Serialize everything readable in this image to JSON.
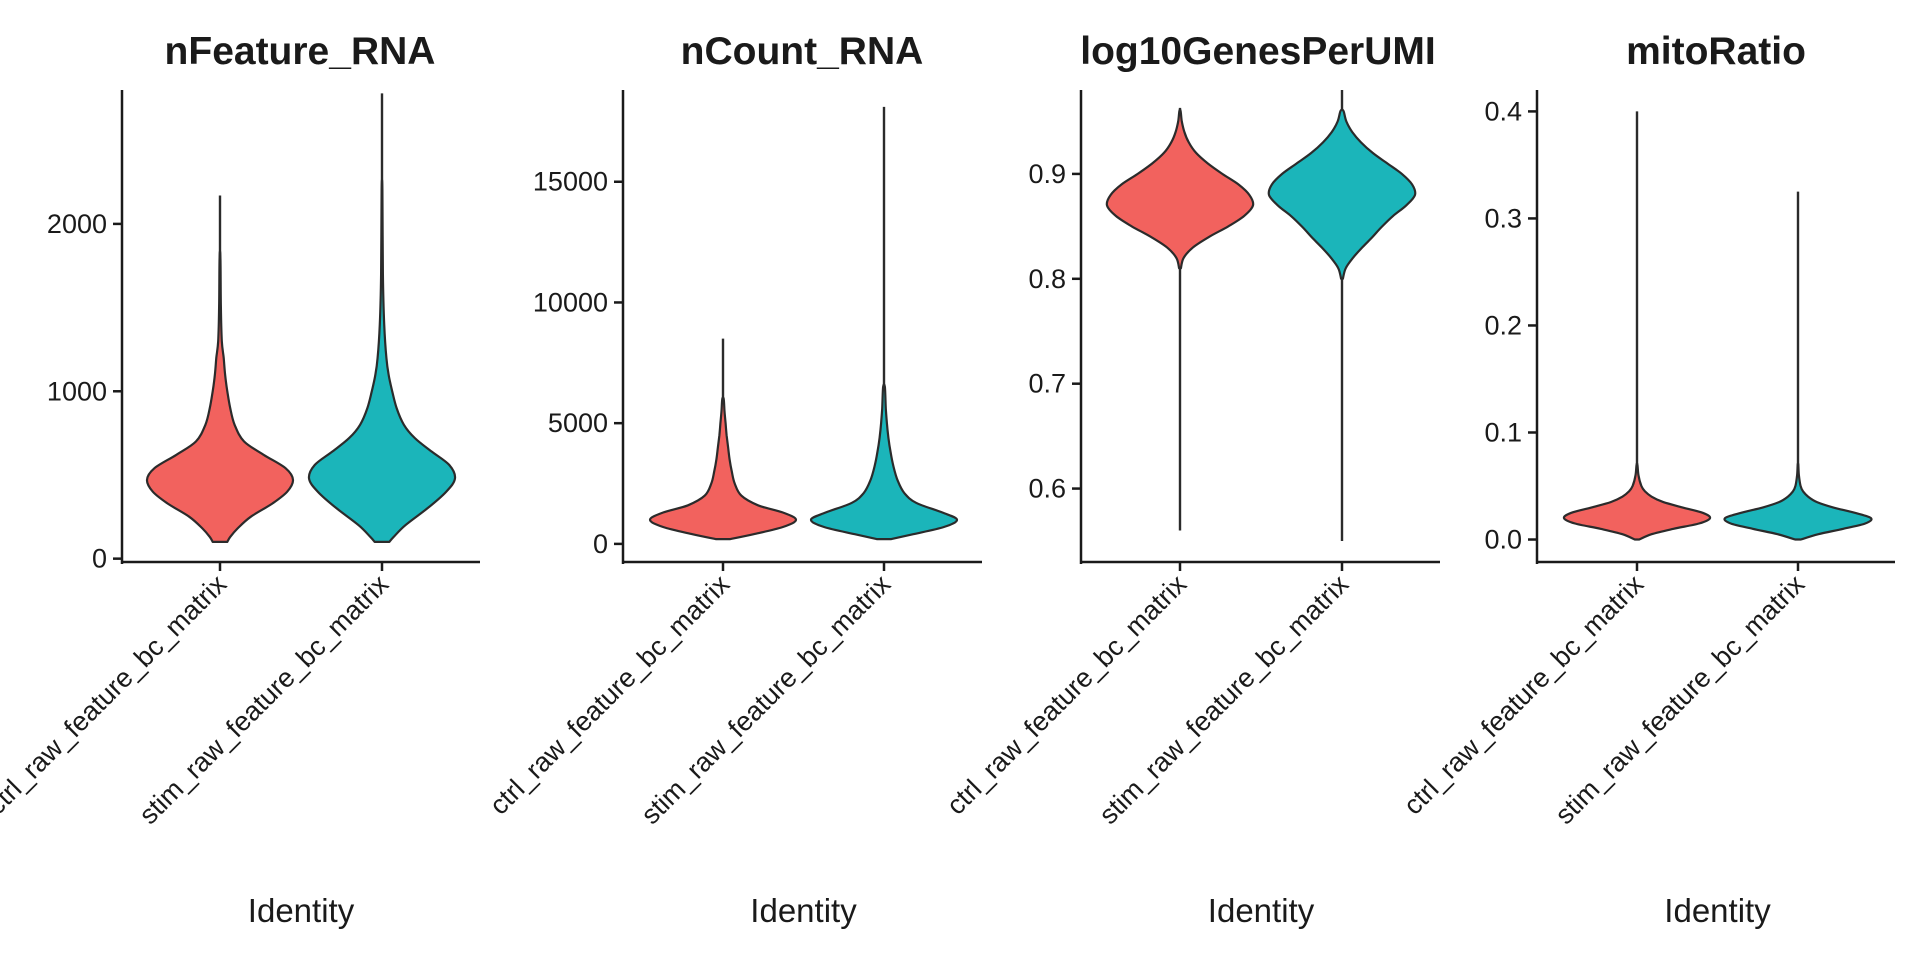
{
  "colors": {
    "ctrl": "#F2625E",
    "stim": "#1BB5BA",
    "axis": "#1A1A1A"
  },
  "chart_data": [
    {
      "type": "violin",
      "title": "nFeature_RNA",
      "xlabel": "Identity",
      "ylabel": "",
      "categories": [
        "ctrl_raw_feature_bc_matrix",
        "stim_raw_feature_bc_matrix"
      ],
      "yticks": [
        0,
        1000,
        2000
      ],
      "ylim": [
        -20,
        2800
      ],
      "series": [
        {
          "category": "ctrl_raw_feature_bc_matrix",
          "min": 100,
          "max": 2170,
          "profile": [
            [
              100,
              0.1
            ],
            [
              130,
              0.14
            ],
            [
              180,
              0.24
            ],
            [
              250,
              0.42
            ],
            [
              330,
              0.72
            ],
            [
              400,
              0.92
            ],
            [
              470,
              1.0
            ],
            [
              540,
              0.9
            ],
            [
              620,
              0.6
            ],
            [
              700,
              0.33
            ],
            [
              800,
              0.2
            ],
            [
              900,
              0.14
            ],
            [
              1000,
              0.1
            ],
            [
              1100,
              0.07
            ],
            [
              1200,
              0.05
            ],
            [
              1300,
              0.025
            ],
            [
              1500,
              0.012
            ],
            [
              1800,
              0.006
            ]
          ]
        },
        {
          "category": "stim_raw_feature_bc_matrix",
          "min": 100,
          "max": 2780,
          "profile": [
            [
              100,
              0.1
            ],
            [
              130,
              0.16
            ],
            [
              200,
              0.32
            ],
            [
              300,
              0.62
            ],
            [
              400,
              0.88
            ],
            [
              480,
              1.0
            ],
            [
              560,
              0.92
            ],
            [
              640,
              0.68
            ],
            [
              720,
              0.45
            ],
            [
              800,
              0.3
            ],
            [
              900,
              0.2
            ],
            [
              1000,
              0.14
            ],
            [
              1100,
              0.09
            ],
            [
              1200,
              0.06
            ],
            [
              1400,
              0.03
            ],
            [
              1700,
              0.012
            ],
            [
              2200,
              0.005
            ]
          ]
        }
      ]
    },
    {
      "type": "violin",
      "title": "nCount_RNA",
      "xlabel": "Identity",
      "ylabel": "",
      "categories": [
        "ctrl_raw_feature_bc_matrix",
        "stim_raw_feature_bc_matrix"
      ],
      "yticks": [
        0,
        5000,
        10000,
        15000
      ],
      "ylim": [
        -750,
        18800
      ],
      "series": [
        {
          "category": "ctrl_raw_feature_bc_matrix",
          "min": 200,
          "max": 8500,
          "profile": [
            [
              200,
              0.1
            ],
            [
              400,
              0.42
            ],
            [
              700,
              0.82
            ],
            [
              1000,
              1.0
            ],
            [
              1300,
              0.82
            ],
            [
              1600,
              0.48
            ],
            [
              2000,
              0.25
            ],
            [
              2500,
              0.16
            ],
            [
              3000,
              0.12
            ],
            [
              3500,
              0.09
            ],
            [
              4000,
              0.07
            ],
            [
              4500,
              0.05
            ],
            [
              5000,
              0.035
            ],
            [
              5500,
              0.02
            ],
            [
              6000,
              0.01
            ]
          ]
        },
        {
          "category": "stim_raw_feature_bc_matrix",
          "min": 200,
          "max": 18100,
          "profile": [
            [
              200,
              0.1
            ],
            [
              400,
              0.4
            ],
            [
              700,
              0.82
            ],
            [
              1000,
              1.0
            ],
            [
              1300,
              0.8
            ],
            [
              1700,
              0.44
            ],
            [
              2100,
              0.28
            ],
            [
              2600,
              0.19
            ],
            [
              3200,
              0.13
            ],
            [
              3800,
              0.09
            ],
            [
              4400,
              0.06
            ],
            [
              5000,
              0.04
            ],
            [
              5600,
              0.025
            ],
            [
              6500,
              0.012
            ]
          ]
        }
      ]
    },
    {
      "type": "violin",
      "title": "log10GenesPerUMI",
      "xlabel": "Identity",
      "ylabel": "",
      "categories": [
        "ctrl_raw_feature_bc_matrix",
        "stim_raw_feature_bc_matrix"
      ],
      "yticks": [
        0.6,
        0.7,
        0.8,
        0.9
      ],
      "ylim": [
        0.53,
        0.98
      ],
      "series": [
        {
          "category": "ctrl_raw_feature_bc_matrix",
          "min": 0.56,
          "max": 0.963,
          "profile": [
            [
              0.81,
              0.012
            ],
            [
              0.82,
              0.05
            ],
            [
              0.83,
              0.18
            ],
            [
              0.84,
              0.4
            ],
            [
              0.85,
              0.66
            ],
            [
              0.86,
              0.88
            ],
            [
              0.87,
              1.0
            ],
            [
              0.88,
              0.95
            ],
            [
              0.89,
              0.8
            ],
            [
              0.9,
              0.58
            ],
            [
              0.91,
              0.38
            ],
            [
              0.92,
              0.22
            ],
            [
              0.93,
              0.12
            ],
            [
              0.94,
              0.06
            ],
            [
              0.95,
              0.025
            ],
            [
              0.96,
              0.008
            ]
          ]
        },
        {
          "category": "stim_raw_feature_bc_matrix",
          "min": 0.55,
          "max": 0.98,
          "profile": [
            [
              0.8,
              0.012
            ],
            [
              0.81,
              0.05
            ],
            [
              0.82,
              0.15
            ],
            [
              0.83,
              0.28
            ],
            [
              0.84,
              0.42
            ],
            [
              0.85,
              0.55
            ],
            [
              0.86,
              0.7
            ],
            [
              0.87,
              0.88
            ],
            [
              0.88,
              1.0
            ],
            [
              0.89,
              0.96
            ],
            [
              0.9,
              0.82
            ],
            [
              0.91,
              0.62
            ],
            [
              0.92,
              0.42
            ],
            [
              0.93,
              0.26
            ],
            [
              0.94,
              0.14
            ],
            [
              0.95,
              0.06
            ],
            [
              0.96,
              0.02
            ]
          ]
        }
      ]
    },
    {
      "type": "violin",
      "title": "mitoRatio",
      "xlabel": "Identity",
      "ylabel": "",
      "categories": [
        "ctrl_raw_feature_bc_matrix",
        "stim_raw_feature_bc_matrix"
      ],
      "yticks": [
        0.0,
        0.1,
        0.2,
        0.3,
        0.4
      ],
      "ylim": [
        -0.021,
        0.42
      ],
      "series": [
        {
          "category": "ctrl_raw_feature_bc_matrix",
          "min": 0.0,
          "max": 0.4,
          "profile": [
            [
              0.0,
              0.03
            ],
            [
              0.005,
              0.2
            ],
            [
              0.01,
              0.5
            ],
            [
              0.015,
              0.85
            ],
            [
              0.02,
              1.0
            ],
            [
              0.025,
              0.9
            ],
            [
              0.03,
              0.62
            ],
            [
              0.035,
              0.36
            ],
            [
              0.04,
              0.2
            ],
            [
              0.045,
              0.11
            ],
            [
              0.05,
              0.06
            ],
            [
              0.06,
              0.02
            ],
            [
              0.07,
              0.006
            ]
          ]
        },
        {
          "category": "stim_raw_feature_bc_matrix",
          "min": 0.0,
          "max": 0.325,
          "profile": [
            [
              0.0,
              0.04
            ],
            [
              0.005,
              0.28
            ],
            [
              0.01,
              0.62
            ],
            [
              0.015,
              0.92
            ],
            [
              0.02,
              1.0
            ],
            [
              0.025,
              0.78
            ],
            [
              0.03,
              0.48
            ],
            [
              0.035,
              0.26
            ],
            [
              0.04,
              0.14
            ],
            [
              0.045,
              0.07
            ],
            [
              0.05,
              0.035
            ],
            [
              0.06,
              0.012
            ],
            [
              0.07,
              0.004
            ]
          ]
        }
      ]
    }
  ]
}
